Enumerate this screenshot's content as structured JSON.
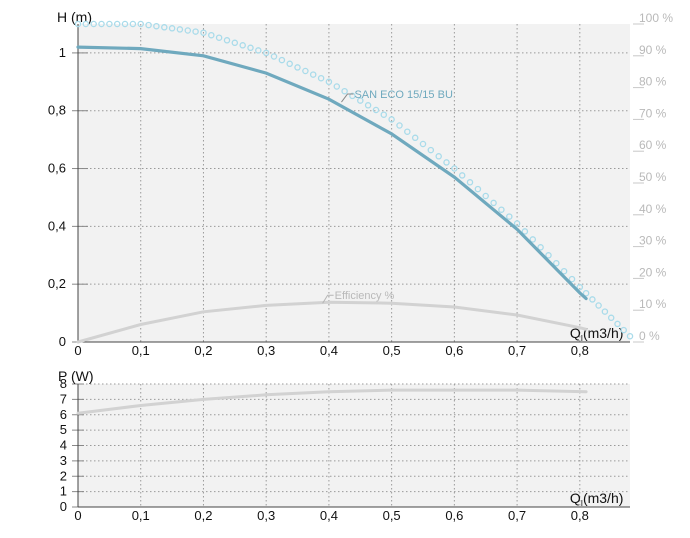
{
  "chart_data": [
    {
      "type": "line",
      "ylabel": "H (m)",
      "xlabel": "Q (m3/h)",
      "xlabel_main": "Q",
      "xlabel_sub": "I",
      "xlabel_units": "(m3/h)",
      "xlim": [
        0,
        0.88
      ],
      "ylim": [
        0,
        1.1
      ],
      "y2lim": [
        0,
        100
      ],
      "x_ticks": [
        "0",
        "0,1",
        "0,2",
        "0,3",
        "0,4",
        "0,5",
        "0,6",
        "0,7",
        "0,8"
      ],
      "y_ticks": [
        "0",
        "0,2",
        "0,4",
        "0,6",
        "0,8",
        "1"
      ],
      "y2_ticks": [
        "0 %",
        "10 %",
        "20 %",
        "30 %",
        "40 %",
        "50 %",
        "60 %",
        "70 %",
        "80 %",
        "90 %",
        "100 %"
      ],
      "grid": true,
      "series": [
        {
          "name": "SAN ECO 15/15 BU",
          "axis": "left",
          "style": "solid",
          "color": "#6fa9be",
          "x": [
            0,
            0.1,
            0.2,
            0.3,
            0.4,
            0.5,
            0.6,
            0.7,
            0.8,
            0.81
          ],
          "y": [
            1.02,
            1.015,
            0.99,
            0.93,
            0.84,
            0.72,
            0.57,
            0.39,
            0.17,
            0.15
          ]
        },
        {
          "name": "Efficiency %",
          "axis": "right",
          "style": "solid",
          "color": "#d2d2d2",
          "x": [
            0,
            0.1,
            0.2,
            0.3,
            0.4,
            0.5,
            0.6,
            0.7,
            0.8,
            0.81
          ],
          "y": [
            0,
            5.5,
            9.5,
            11.5,
            12.5,
            12.2,
            11.0,
            8.5,
            4.5,
            4.0
          ]
        },
        {
          "name": "",
          "axis": "left",
          "style": "dotted",
          "color": "#a9dbea",
          "x": [
            0,
            0.1,
            0.2,
            0.3,
            0.4,
            0.5,
            0.6,
            0.7,
            0.8,
            0.88
          ],
          "y": [
            1.1,
            1.1,
            1.07,
            1.0,
            0.9,
            0.77,
            0.6,
            0.41,
            0.19,
            0.02
          ]
        }
      ]
    },
    {
      "type": "line",
      "ylabel": "P (W)",
      "xlabel": "Q (m3/h)",
      "xlabel_main": "Q",
      "xlabel_sub": "I",
      "xlabel_units": "(m3/h)",
      "xlim": [
        0,
        0.88
      ],
      "ylim": [
        0,
        8
      ],
      "x_ticks": [
        "0",
        "0,1",
        "0,2",
        "0,3",
        "0,4",
        "0,5",
        "0,6",
        "0,7",
        "0,8"
      ],
      "y_ticks": [
        "0",
        "1",
        "2",
        "3",
        "4",
        "5",
        "6",
        "7",
        "8"
      ],
      "grid": true,
      "series": [
        {
          "name": "",
          "style": "solid",
          "color": "#d2d2d2",
          "x": [
            0,
            0.1,
            0.2,
            0.3,
            0.4,
            0.5,
            0.6,
            0.7,
            0.81
          ],
          "y": [
            6.1,
            6.6,
            7.0,
            7.3,
            7.5,
            7.6,
            7.6,
            7.6,
            7.5
          ]
        }
      ]
    }
  ]
}
